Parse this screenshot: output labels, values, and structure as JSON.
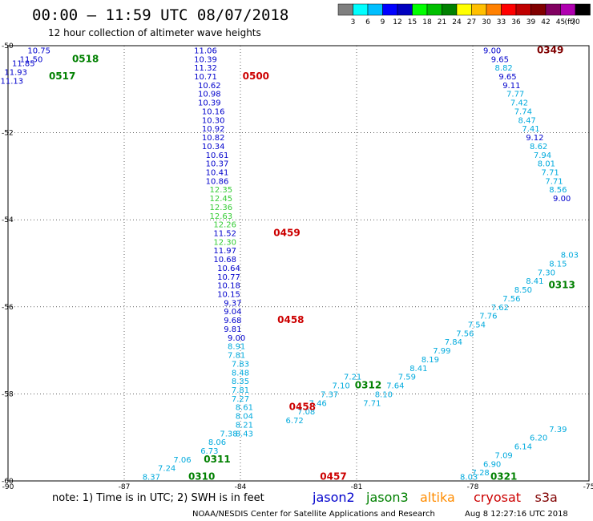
{
  "header": {
    "title": "00:00 – 11:59 UTC 08/07/2018",
    "subtitle": "12 hour collection of altimeter wave heights"
  },
  "legend": {
    "colors": [
      "#7f7f7f",
      "#00ffff",
      "#00bfff",
      "#0000ff",
      "#0000bf",
      "#00ff00",
      "#00bf00",
      "#008000",
      "#ffff00",
      "#ffbf00",
      "#ff8000",
      "#ff0000",
      "#c00000",
      "#800000",
      "#800060",
      "#b000b0",
      "#000000"
    ],
    "ticks": [
      "3",
      "6",
      "9",
      "12",
      "15",
      "18",
      "21",
      "24",
      "27",
      "30",
      "33",
      "36",
      "39",
      "42",
      "45",
      "70"
    ],
    "unit": "(ft)"
  },
  "note": "note: 1) Time is in UTC; 2) SWH is in feet",
  "satellites": [
    {
      "name": "jason2",
      "color": "#0000cc"
    },
    {
      "name": "jason3",
      "color": "#008000"
    },
    {
      "name": "altika",
      "color": "#ff8c00"
    },
    {
      "name": "cryosat",
      "color": "#cc0000"
    },
    {
      "name": "s3a",
      "color": "#800000"
    }
  ],
  "credit": "NOAA/NESDIS Center for Satellite Applications and Research",
  "timestamp": "Aug  8 12:27:16 UTC 2018",
  "chart_data": {
    "type": "scatter",
    "xlim": [
      -90,
      -75
    ],
    "ylim": [
      -60,
      -50
    ],
    "xticks": [
      "-90",
      "-87",
      "-84",
      "-81",
      "-78",
      "-75"
    ],
    "yticks": [
      "-50",
      "-52",
      "-54",
      "-56",
      "-58",
      "-60"
    ],
    "grid": true,
    "series": [
      {
        "name": "jason2",
        "points": [
          [
            -84.9,
            -50.1,
            "11.06"
          ],
          [
            -84.9,
            -50.3,
            "10.39"
          ],
          [
            -84.9,
            -50.5,
            "11.32"
          ],
          [
            -84.9,
            -50.7,
            "10.71"
          ],
          [
            -84.8,
            -50.9,
            "10.62"
          ],
          [
            -84.8,
            -51.1,
            "10.98"
          ],
          [
            -84.8,
            -51.3,
            "10.39"
          ],
          [
            -84.7,
            -51.5,
            "10.16"
          ],
          [
            -84.7,
            -51.7,
            "10.30"
          ],
          [
            -84.7,
            -51.9,
            "10.92"
          ],
          [
            -84.7,
            -52.1,
            "10.82"
          ],
          [
            -84.7,
            -52.3,
            "10.34"
          ],
          [
            -84.6,
            -52.5,
            "10.61"
          ],
          [
            -84.6,
            -52.7,
            "10.37"
          ],
          [
            -84.6,
            -52.9,
            "10.41"
          ],
          [
            -84.6,
            -53.1,
            "10.86"
          ],
          [
            -84.5,
            -53.3,
            "12.35"
          ],
          [
            -84.5,
            -53.5,
            "12.45"
          ],
          [
            -84.5,
            -53.7,
            "12.36"
          ],
          [
            -84.5,
            -53.9,
            "12.63"
          ],
          [
            -84.4,
            -54.1,
            "12.26"
          ],
          [
            -84.4,
            -54.3,
            "11.52"
          ],
          [
            -84.4,
            -54.5,
            "12.30"
          ],
          [
            -84.4,
            -54.7,
            "11.97"
          ],
          [
            -84.4,
            -54.9,
            "10.68"
          ],
          [
            -84.3,
            -55.1,
            "10.64"
          ],
          [
            -84.3,
            -55.3,
            "10.77"
          ],
          [
            -84.3,
            -55.5,
            "10.18"
          ],
          [
            -84.3,
            -55.7,
            "10.15"
          ],
          [
            -84.2,
            -55.9,
            "9.37"
          ],
          [
            -84.2,
            -56.1,
            "9.04"
          ],
          [
            -84.2,
            -56.3,
            "9.68"
          ],
          [
            -84.2,
            -56.5,
            "9.81"
          ],
          [
            -84.1,
            -56.7,
            "9.00"
          ],
          [
            -84.1,
            -56.9,
            "8.91"
          ],
          [
            -84.1,
            -57.1,
            "7.81"
          ],
          [
            -84.0,
            -57.3,
            "7.83"
          ],
          [
            -84.0,
            -57.5,
            "8.48"
          ],
          [
            -84.0,
            -57.7,
            "8.35"
          ],
          [
            -84.0,
            -57.9,
            "7.81"
          ],
          [
            -84.0,
            -58.1,
            "7.27"
          ],
          [
            -83.9,
            -58.3,
            "8.61"
          ],
          [
            -83.9,
            -58.5,
            "8.04"
          ],
          [
            -83.9,
            -58.7,
            "8.21"
          ],
          [
            -83.9,
            -58.9,
            "8.43"
          ],
          [
            -89.2,
            -50.1,
            "10.75"
          ],
          [
            -89.4,
            -50.3,
            "11.50"
          ],
          [
            -89.6,
            -50.4,
            "11.85"
          ],
          [
            -89.8,
            -50.6,
            "11.93"
          ],
          [
            -89.9,
            -50.8,
            "11.13"
          ],
          [
            -77.5,
            -50.1,
            "9.00"
          ],
          [
            -77.3,
            -50.3,
            "9.65"
          ],
          [
            -77.2,
            -50.5,
            "8.82"
          ],
          [
            -77.1,
            -50.7,
            "9.65"
          ],
          [
            -77.0,
            -50.9,
            "9.11"
          ],
          [
            -76.9,
            -51.1,
            "7.77"
          ],
          [
            -76.8,
            -51.3,
            "7.42"
          ],
          [
            -76.7,
            -51.5,
            "7.74"
          ],
          [
            -76.6,
            -51.7,
            "8.47"
          ],
          [
            -76.5,
            -51.9,
            "7.41"
          ],
          [
            -76.4,
            -52.1,
            "9.12"
          ],
          [
            -76.3,
            -52.3,
            "8.62"
          ],
          [
            -76.2,
            -52.5,
            "7.94"
          ],
          [
            -76.1,
            -52.7,
            "8.01"
          ],
          [
            -76.0,
            -52.9,
            "7.71"
          ],
          [
            -75.9,
            -53.1,
            "7.71"
          ],
          [
            -75.8,
            -53.3,
            "8.56"
          ],
          [
            -75.7,
            -53.5,
            "9.00"
          ],
          [
            -80.6,
            -58.2,
            "7.71"
          ],
          [
            -80.3,
            -58.0,
            "8.10"
          ],
          [
            -80.0,
            -57.8,
            "7.64"
          ],
          [
            -79.7,
            -57.6,
            "7.59"
          ],
          [
            -79.4,
            -57.4,
            "8.41"
          ],
          [
            -79.1,
            -57.2,
            "8.19"
          ],
          [
            -78.8,
            -57.0,
            "7.99"
          ],
          [
            -78.5,
            -56.8,
            "7.84"
          ],
          [
            -78.2,
            -56.6,
            "7.56"
          ],
          [
            -77.9,
            -56.4,
            "7.54"
          ],
          [
            -77.6,
            -56.2,
            "7.76"
          ],
          [
            -77.3,
            -56.0,
            "7.62"
          ],
          [
            -77.0,
            -55.8,
            "7.56"
          ],
          [
            -76.7,
            -55.6,
            "8.50"
          ],
          [
            -76.4,
            -55.4,
            "8.41"
          ],
          [
            -76.1,
            -55.2,
            "7.30"
          ],
          [
            -75.8,
            -55.0,
            "8.15"
          ],
          [
            -75.5,
            -54.8,
            "8.03"
          ],
          [
            -82.6,
            -58.6,
            "6.72"
          ],
          [
            -82.3,
            -58.4,
            "7.08"
          ],
          [
            -82.0,
            -58.2,
            "7.46"
          ],
          [
            -81.7,
            -58.0,
            "7.37"
          ],
          [
            -81.4,
            -57.8,
            "7.10"
          ],
          [
            -81.1,
            -57.6,
            "7.21"
          ],
          [
            -85.5,
            -59.5,
            "7.06"
          ],
          [
            -85.9,
            -59.7,
            "7.24"
          ],
          [
            -86.3,
            -59.9,
            "8.37"
          ],
          [
            -84.8,
            -59.3,
            "6.73"
          ],
          [
            -84.6,
            -59.1,
            "8.06"
          ],
          [
            -84.3,
            -58.9,
            "7.38"
          ],
          [
            -78.1,
            -59.9,
            "8.03"
          ],
          [
            -77.8,
            -59.8,
            "7.28"
          ],
          [
            -77.5,
            -59.6,
            "6.90"
          ],
          [
            -77.2,
            -59.4,
            "7.09"
          ],
          [
            -76.7,
            -59.2,
            "6.14"
          ],
          [
            -76.3,
            -59.0,
            "6.20"
          ],
          [
            -75.8,
            -58.8,
            "7.39"
          ]
        ]
      },
      {
        "name": "pass-times",
        "points": [
          [
            -83.6,
            -50.7,
            "0500"
          ],
          [
            -82.8,
            -54.3,
            "0459"
          ],
          [
            -82.7,
            -56.3,
            "0458"
          ],
          [
            -82.4,
            -58.3,
            "0458"
          ],
          [
            -81.6,
            -59.9,
            "0457"
          ],
          [
            -76.0,
            -50.1,
            "0349"
          ],
          [
            -88.0,
            -50.3,
            "0518"
          ],
          [
            -88.6,
            -50.7,
            "0517"
          ],
          [
            -84.6,
            -59.5,
            "0311"
          ],
          [
            -85.0,
            -59.9,
            "0310"
          ],
          [
            -80.7,
            -57.8,
            "0312"
          ],
          [
            -75.7,
            -55.5,
            "0313"
          ],
          [
            -77.2,
            -59.9,
            "0321"
          ]
        ]
      }
    ]
  }
}
